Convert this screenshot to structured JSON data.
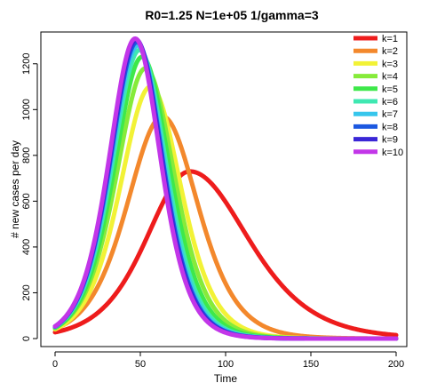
{
  "chart_data": {
    "type": "line",
    "title": "R0=1.25  N=1e+05  1/gamma=3",
    "xlabel": "Time",
    "ylabel": "# new cases per day",
    "xlim": [
      0,
      200
    ],
    "ylim": [
      0,
      1300
    ],
    "x_ticks": [
      0,
      50,
      100,
      150,
      200
    ],
    "y_ticks": [
      0,
      200,
      400,
      600,
      800,
      1000,
      1200
    ],
    "grid": false,
    "legend_position": "top-right",
    "series": [
      {
        "name": "k=1",
        "color": "#EE1C1C",
        "peak_time": 79,
        "peak_value": 730,
        "rise_width": 17,
        "fall_width": 23
      },
      {
        "name": "k=2",
        "color": "#F3882C",
        "peak_time": 63,
        "peak_value": 970,
        "rise_width": 14,
        "fall_width": 14
      },
      {
        "name": "k=3",
        "color": "#F2F236",
        "peak_time": 56,
        "peak_value": 1100,
        "rise_width": 12,
        "fall_width": 12
      },
      {
        "name": "k=4",
        "color": "#86EB3A",
        "peak_time": 53,
        "peak_value": 1180,
        "rise_width": 11.5,
        "fall_width": 11.5
      },
      {
        "name": "k=5",
        "color": "#3EE84A",
        "peak_time": 51,
        "peak_value": 1230,
        "rise_width": 11,
        "fall_width": 11
      },
      {
        "name": "k=6",
        "color": "#3FE8B2",
        "peak_time": 49.5,
        "peak_value": 1260,
        "rise_width": 10.8,
        "fall_width": 10.6
      },
      {
        "name": "k=7",
        "color": "#37C6EC",
        "peak_time": 48.5,
        "peak_value": 1280,
        "rise_width": 10.6,
        "fall_width": 10.4
      },
      {
        "name": "k=8",
        "color": "#1C58E0",
        "peak_time": 48,
        "peak_value": 1295,
        "rise_width": 10.5,
        "fall_width": 10.2
      },
      {
        "name": "k=9",
        "color": "#3A26D6",
        "peak_time": 47.5,
        "peak_value": 1305,
        "rise_width": 10.4,
        "fall_width": 10.1
      },
      {
        "name": "k=10",
        "color": "#C236E8",
        "peak_time": 47,
        "peak_value": 1310,
        "rise_width": 10.3,
        "fall_width": 10
      }
    ]
  }
}
